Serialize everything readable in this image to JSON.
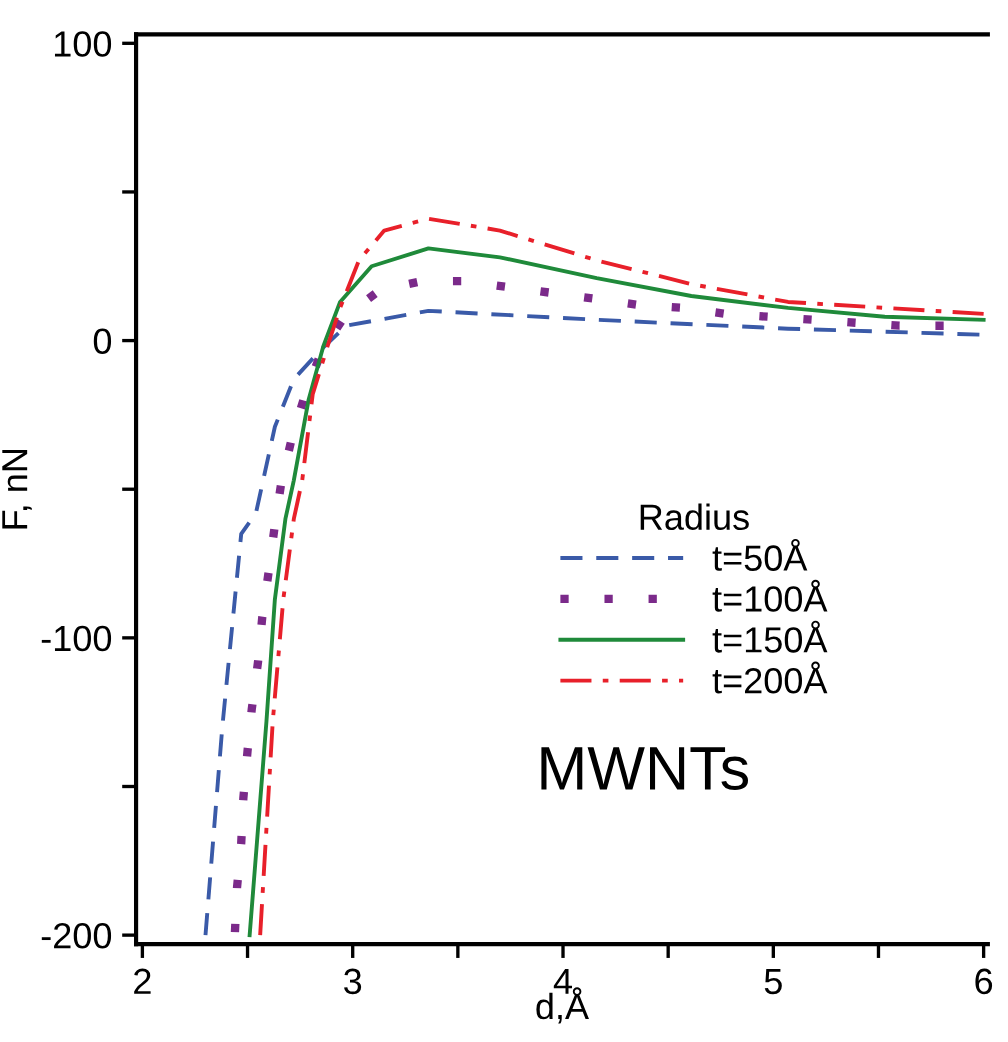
{
  "chart_data": {
    "type": "line",
    "xlabel": "d,Å",
    "ylabel": "F, nN",
    "legend_title": "Radius",
    "legend": "right",
    "grid": false,
    "annotations": [
      "MWNTs"
    ],
    "xlim": [
      1.97,
      6.02
    ],
    "ylim": [
      -203,
      103
    ],
    "xticks": [
      2,
      {
        "value": 2.5,
        "label": null
      },
      3,
      {
        "value": 3.5,
        "label": null
      },
      4,
      {
        "value": 4.5,
        "label": null
      },
      5,
      {
        "value": 5.5,
        "label": null
      },
      6
    ],
    "yticks": [
      -200,
      {
        "value": -150,
        "label": null
      },
      -100,
      {
        "value": -50,
        "label": null
      },
      0,
      {
        "value": 50,
        "label": null
      },
      100
    ],
    "series": [
      {
        "name": "t=50Å",
        "color": "#3a5aa8",
        "line_style": "dashed",
        "x": [
          2.3,
          2.38,
          2.47,
          2.54,
          2.63,
          2.72,
          2.85,
          2.97,
          3.36,
          4.16,
          5.07,
          5.98
        ],
        "values": [
          -200,
          -130,
          -65,
          -58,
          -29,
          -13,
          -3,
          5,
          10,
          7,
          4,
          2
        ]
      },
      {
        "name": "t=100Å",
        "color": "#7b2a8a",
        "line_style": "dotted",
        "x": [
          2.44,
          2.45,
          2.47,
          2.48,
          2.5,
          2.52,
          2.55,
          2.57,
          2.6,
          2.63,
          2.66,
          2.71,
          2.77,
          2.85,
          2.96,
          3.13,
          3.33,
          3.53,
          3.74,
          3.95,
          4.16,
          4.36,
          4.57,
          4.77,
          4.98,
          5.19,
          5.39,
          5.6,
          5.81
        ],
        "values": [
          -199,
          -184,
          -169,
          -154,
          -138,
          -124,
          -108,
          -93,
          -78,
          -62,
          -48,
          -33,
          -19,
          -4,
          8,
          17,
          20,
          20,
          18,
          16,
          14,
          12,
          11,
          9,
          8,
          7,
          6,
          5,
          5
        ]
      },
      {
        "name": "t=150Å",
        "color": "#1f8a3a",
        "line_style": "solid",
        "x": [
          2.51,
          2.59,
          2.63,
          2.68,
          2.72,
          2.79,
          2.86,
          2.94,
          3.09,
          3.36,
          3.7,
          4.16,
          4.61,
          5.07,
          5.53,
          6.0
        ],
        "values": [
          -200,
          -128,
          -87,
          -60,
          -47,
          -20,
          -2,
          13,
          25,
          31,
          28,
          21,
          15,
          11,
          8,
          7
        ]
      },
      {
        "name": "t=200Å",
        "color": "#e8202a",
        "line_style": "dashdot",
        "x": [
          2.56,
          2.62,
          2.67,
          2.72,
          2.76,
          2.81,
          2.88,
          2.94,
          3.03,
          3.15,
          3.36,
          3.7,
          4.16,
          4.61,
          5.07,
          5.53,
          6.0
        ],
        "values": [
          -200,
          -128,
          -87,
          -60,
          -47,
          -18,
          -2,
          11,
          27,
          37,
          41,
          37,
          27,
          19,
          13,
          11,
          9
        ]
      }
    ]
  }
}
